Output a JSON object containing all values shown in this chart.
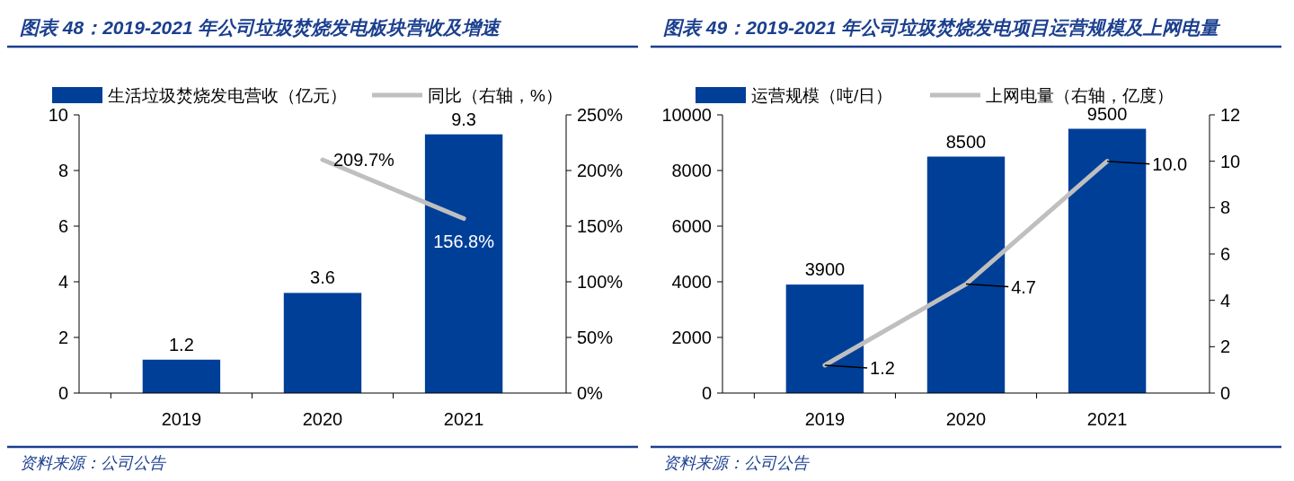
{
  "chart_data": [
    {
      "type": "bar",
      "title": "图表 48：2019-2021 年公司垃圾焚烧发电板块营收及增速",
      "categories": [
        "2019",
        "2020",
        "2021"
      ],
      "series": [
        {
          "name": "生活垃圾焚烧发电营收（亿元）",
          "color": "#003f98",
          "values": [
            1.2,
            3.6,
            9.3
          ],
          "value_labels": [
            "1.2",
            "3.6",
            "9.3"
          ]
        },
        {
          "name": "同比（右轴，%）",
          "type": "line",
          "axis": "y2",
          "color": "#bfbfbf",
          "values": [
            null,
            209.7,
            156.8
          ],
          "value_labels": [
            null,
            "209.7%",
            "156.8%"
          ]
        }
      ],
      "ylim": [
        0,
        10
      ],
      "yticks": [
        0,
        2,
        4,
        6,
        8,
        10
      ],
      "y2lim": [
        0,
        250
      ],
      "y2ticks": [
        {
          "value": 0,
          "label": "0%"
        },
        {
          "value": 50,
          "label": "50%"
        },
        {
          "value": 100,
          "label": "100%"
        },
        {
          "value": 150,
          "label": "150%"
        },
        {
          "value": 200,
          "label": "200%"
        },
        {
          "value": 250,
          "label": "250%"
        }
      ],
      "legend": "top",
      "grid": false,
      "marker": "none",
      "annotations": [
        "资料来源：公司公告"
      ]
    },
    {
      "type": "bar",
      "title": "图表 49：2019-2021 年公司垃圾焚烧发电项目运营规模及上网电量",
      "categories": [
        "2019",
        "2020",
        "2021"
      ],
      "series": [
        {
          "name": "运营规模（吨/日）",
          "color": "#003f98",
          "values": [
            3900,
            8500,
            9500
          ],
          "value_labels": [
            "3900",
            "8500",
            "9500"
          ]
        },
        {
          "name": "上网电量（右轴，亿度）",
          "type": "line",
          "axis": "y2",
          "color": "#bfbfbf",
          "values": [
            1.2,
            4.7,
            10.0
          ],
          "value_labels": [
            "1.2",
            "4.7",
            "10.0"
          ]
        }
      ],
      "ylim": [
        0,
        10000
      ],
      "yticks": [
        0,
        2000,
        4000,
        6000,
        8000,
        10000
      ],
      "y2lim": [
        0,
        12
      ],
      "y2ticks": [
        0,
        2,
        4,
        6,
        8,
        10,
        12
      ],
      "legend": "top",
      "grid": false,
      "marker": "none",
      "annotations": [
        "资料来源：公司公告"
      ]
    }
  ]
}
